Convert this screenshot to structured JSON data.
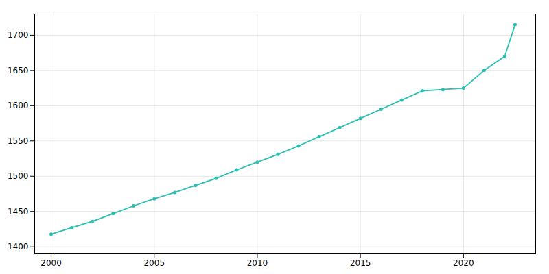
{
  "chart_data": {
    "type": "line",
    "x": [
      2000,
      2001,
      2002,
      2003,
      2004,
      2005,
      2006,
      2007,
      2008,
      2009,
      2010,
      2011,
      2012,
      2013,
      2014,
      2015,
      2016,
      2017,
      2018,
      2019,
      2020,
      2021,
      2022,
      2022.5
    ],
    "values": [
      1418,
      1427,
      1436,
      1447,
      1458,
      1468,
      1477,
      1487,
      1497,
      1509,
      1520,
      1531,
      1543,
      1556,
      1569,
      1582,
      1595,
      1608,
      1621,
      1623,
      1625,
      1650,
      1670,
      1715
    ],
    "color": "#2abfb3",
    "marker": "o",
    "xlim": [
      1999.2,
      2023.5
    ],
    "ylim": [
      1390,
      1730
    ],
    "xticks": [
      2000,
      2005,
      2010,
      2015,
      2020
    ],
    "yticks": [
      1400,
      1450,
      1500,
      1550,
      1600,
      1650,
      1700
    ],
    "grid": true
  }
}
